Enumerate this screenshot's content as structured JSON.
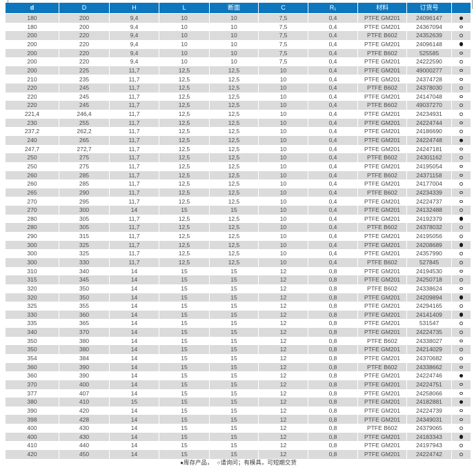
{
  "colors": {
    "header_bg": "#0e76bc",
    "row_alt": "#dbdbdb",
    "text": "#4a4a4a",
    "dot": "#1a1a1a"
  },
  "table": {
    "columns": [
      {
        "key": "d",
        "label": "d"
      },
      {
        "key": "D",
        "label": "D"
      },
      {
        "key": "H",
        "label": "H"
      },
      {
        "key": "L",
        "label": "L"
      },
      {
        "key": "section",
        "label": "断面"
      },
      {
        "key": "C",
        "label": "C"
      },
      {
        "key": "R1",
        "label": "R₁"
      },
      {
        "key": "material",
        "label": "材料"
      },
      {
        "key": "order-no",
        "label": "订货号"
      },
      {
        "key": "status",
        "label": ""
      }
    ],
    "rows": [
      [
        "180",
        "200",
        "9,4",
        "10",
        "10",
        "7,5",
        "0,4",
        "PTFE GM201",
        "24096147",
        "filled"
      ],
      [
        "180",
        "200",
        "9,4",
        "10",
        "10",
        "7,5",
        "0,4",
        "PTFE GM201",
        "24367094",
        "open"
      ],
      [
        "200",
        "220",
        "9,4",
        "10",
        "10",
        "7,5",
        "0,4",
        "PTFE B602",
        "24352639",
        "open"
      ],
      [
        "200",
        "220",
        "9,4",
        "10",
        "10",
        "7,5",
        "0,4",
        "PTFE GM201",
        "24096148",
        "filled"
      ],
      [
        "200",
        "220",
        "9,4",
        "10",
        "10",
        "7,5",
        "0,4",
        "PTFE B602",
        "525585",
        "open"
      ],
      [
        "200",
        "220",
        "9,4",
        "10",
        "10",
        "7,5",
        "0,4",
        "PTFE GM201",
        "24222590",
        "open"
      ],
      [
        "200",
        "225",
        "11,7",
        "12,5",
        "12,5",
        "10",
        "0,4",
        "PTFE GM201",
        "49000277",
        "open"
      ],
      [
        "210",
        "235",
        "11,7",
        "12,5",
        "12,5",
        "10",
        "0,4",
        "PTFE GM201",
        "24374728",
        "open"
      ],
      [
        "220",
        "245",
        "11,7",
        "12,5",
        "12,5",
        "10",
        "0,4",
        "PTFE B602",
        "24378030",
        "open"
      ],
      [
        "220",
        "245",
        "11,7",
        "12,5",
        "12,5",
        "10",
        "0,4",
        "PTFE GM201",
        "24147048",
        "open"
      ],
      [
        "220",
        "245",
        "11,7",
        "12,5",
        "12,5",
        "10",
        "0,4",
        "PTFE B602",
        "49037270",
        "open"
      ],
      [
        "221,4",
        "246,4",
        "11,7",
        "12,5",
        "12,5",
        "10",
        "0,4",
        "PTFE GM201",
        "24234931",
        "open"
      ],
      [
        "230",
        "255",
        "11,7",
        "12,5",
        "12,5",
        "10",
        "0,4",
        "PTFE GM201",
        "24224744",
        "open"
      ],
      [
        "237,2",
        "262,2",
        "11,7",
        "12,5",
        "12,5",
        "10",
        "0,4",
        "PTFE GM201",
        "24186690",
        "open"
      ],
      [
        "240",
        "265",
        "11,7",
        "12,5",
        "12,5",
        "10",
        "0,4",
        "PTFE GM201",
        "24224748",
        "filled"
      ],
      [
        "247,7",
        "272,7",
        "11,7",
        "12,5",
        "12,5",
        "10",
        "0,4",
        "PTFE GM201",
        "24247181",
        "open"
      ],
      [
        "250",
        "275",
        "11,7",
        "12,5",
        "12,5",
        "10",
        "0,4",
        "PTFE B602",
        "24301162",
        "open"
      ],
      [
        "250",
        "275",
        "11,7",
        "12,5",
        "12,5",
        "10",
        "0,4",
        "PTFE GM201",
        "24195054",
        "open"
      ],
      [
        "260",
        "285",
        "11,7",
        "12,5",
        "12,5",
        "10",
        "0,4",
        "PTFE B602",
        "24371158",
        "open"
      ],
      [
        "260",
        "285",
        "11,7",
        "12,5",
        "12,5",
        "10",
        "0,4",
        "PTFE GM201",
        "24177004",
        "open"
      ],
      [
        "265",
        "290",
        "11,7",
        "12,5",
        "12,5",
        "10",
        "0,4",
        "PTFE B602",
        "24234339",
        "open"
      ],
      [
        "270",
        "295",
        "11,7",
        "12,5",
        "12,5",
        "10",
        "0,4",
        "PTFE GM201",
        "24224737",
        "open"
      ],
      [
        "270",
        "300",
        "14",
        "15",
        "15",
        "10",
        "0,4",
        "PTFE GM201",
        "24132488",
        "open"
      ],
      [
        "280",
        "305",
        "11,7",
        "12,5",
        "12,5",
        "10",
        "0,4",
        "PTFE GM201",
        "24192379",
        "filled"
      ],
      [
        "280",
        "305",
        "11,7",
        "12,5",
        "12,5",
        "10",
        "0,4",
        "PTFE B602",
        "24378032",
        "open"
      ],
      [
        "290",
        "315",
        "11,7",
        "12,5",
        "12,5",
        "10",
        "0,4",
        "PTFE GM201",
        "24195056",
        "open"
      ],
      [
        "300",
        "325",
        "11,7",
        "12,5",
        "12,5",
        "10",
        "0,4",
        "PTFE GM201",
        "24208689",
        "filled"
      ],
      [
        "300",
        "325",
        "11,7",
        "12,5",
        "12,5",
        "10",
        "0,4",
        "PTFE GM201",
        "24357990",
        "open"
      ],
      [
        "300",
        "330",
        "11,7",
        "12,5",
        "12,5",
        "10",
        "0,4",
        "PTFE B602",
        "527845",
        "open"
      ],
      [
        "310",
        "340",
        "14",
        "15",
        "15",
        "12",
        "0,8",
        "PTFE GM201",
        "24194530",
        "open"
      ],
      [
        "315",
        "345",
        "14",
        "15",
        "15",
        "12",
        "0,8",
        "PTFE GM201",
        "24250718",
        "open"
      ],
      [
        "320",
        "350",
        "14",
        "15",
        "15",
        "12",
        "0,8",
        "PTFE B602",
        "24338624",
        "open"
      ],
      [
        "320",
        "350",
        "14",
        "15",
        "15",
        "12",
        "0,8",
        "PTFE GM201",
        "24209894",
        "filled"
      ],
      [
        "325",
        "355",
        "14",
        "15",
        "15",
        "12",
        "0,8",
        "PTFE GM201",
        "24294165",
        "open"
      ],
      [
        "330",
        "360",
        "14",
        "15",
        "15",
        "12",
        "0,8",
        "PTFE GM201",
        "24141409",
        "filled"
      ],
      [
        "335",
        "365",
        "14",
        "15",
        "15",
        "12",
        "0,8",
        "PTFE GM201",
        "531547",
        "open"
      ],
      [
        "340",
        "370",
        "14",
        "15",
        "15",
        "12",
        "0,8",
        "PTFE GM201",
        "24224735",
        "open"
      ],
      [
        "350",
        "380",
        "14",
        "15",
        "15",
        "12",
        "0,8",
        "PTFE B602",
        "24338027",
        "open"
      ],
      [
        "350",
        "380",
        "14",
        "15",
        "15",
        "12",
        "0,8",
        "PTFE GM201",
        "24214029",
        "open"
      ],
      [
        "354",
        "384",
        "14",
        "15",
        "15",
        "12",
        "0,8",
        "PTFE GM201",
        "24370682",
        "open"
      ],
      [
        "360",
        "390",
        "14",
        "15",
        "15",
        "12",
        "0,8",
        "PTFE B602",
        "24338662",
        "open"
      ],
      [
        "360",
        "390",
        "14",
        "15",
        "15",
        "12",
        "0,8",
        "PTFE GM201",
        "24224746",
        "filled"
      ],
      [
        "370",
        "400",
        "14",
        "15",
        "15",
        "12",
        "0,8",
        "PTFE GM201",
        "24224751",
        "open"
      ],
      [
        "377",
        "407",
        "14",
        "15",
        "15",
        "12",
        "0,8",
        "PTFE GM201",
        "24258066",
        "open"
      ],
      [
        "380",
        "410",
        "15",
        "15",
        "15",
        "12",
        "0,8",
        "PTFE GM201",
        "24182881",
        "filled"
      ],
      [
        "390",
        "420",
        "14",
        "15",
        "15",
        "12",
        "0,8",
        "PTFE GM201",
        "24224739",
        "open"
      ],
      [
        "398",
        "428",
        "14",
        "15",
        "15",
        "12",
        "0,8",
        "PTFE GM201",
        "24349031",
        "open"
      ],
      [
        "400",
        "430",
        "14",
        "15",
        "15",
        "12",
        "0,8",
        "PTFE B602",
        "24379065",
        "open"
      ],
      [
        "400",
        "430",
        "14",
        "15",
        "15",
        "12",
        "0,8",
        "PTFE GM201",
        "24183343",
        "filled"
      ],
      [
        "410",
        "440",
        "14",
        "15",
        "15",
        "12",
        "0,8",
        "PTFE GM201",
        "24197943",
        "open"
      ],
      [
        "420",
        "450",
        "14",
        "15",
        "15",
        "12",
        "0,8",
        "PTFE GM201",
        "24224742",
        "open"
      ]
    ]
  },
  "legend": {
    "stock_symbol": "●",
    "stock_label": "库存产品，",
    "inquiry_symbol": "○",
    "inquiry_label": "请询问；有模具，可短期交货"
  }
}
